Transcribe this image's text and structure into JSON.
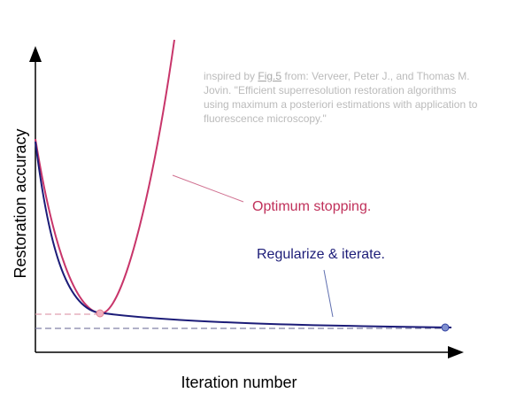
{
  "y_axis_label": "Restoration accuracy",
  "x_axis_label": "Iteration number",
  "citation": {
    "prefix": "inspired by ",
    "link": "Fig.5",
    "lines": [
      " from: Verveer, Peter J., and Thomas M.",
      "Jovin. \"Efficient superresolution restoration algorithms",
      "using maximum a posteriori estimations with application to",
      "fluorescence microscopy.\""
    ]
  },
  "annotations": {
    "optimum": "Optimum stopping.",
    "regularize": "Regularize & iterate."
  }
}
